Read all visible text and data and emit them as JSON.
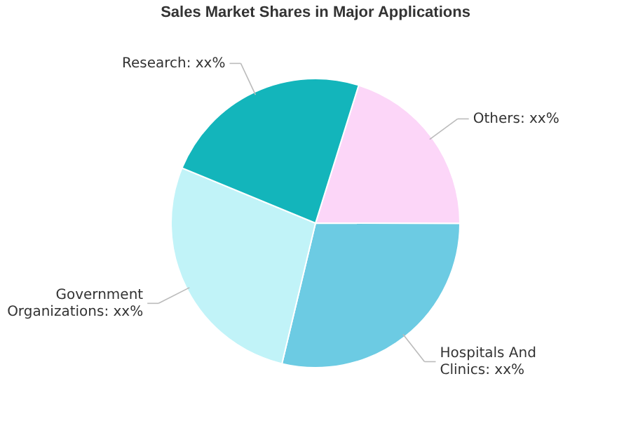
{
  "chart_data": {
    "type": "pie",
    "title": "Sales Market Shares in Major Applications",
    "categories": [
      "Others",
      "Hospitals And Clinics",
      "Government Organizations",
      "Research"
    ],
    "values": [
      20.2,
      28.7,
      27.5,
      23.6
    ],
    "value_labels": [
      "xx%",
      "xx%",
      "xx%",
      "xx%"
    ],
    "colors": [
      "#fcd6f8",
      "#6ccbe3",
      "#c1f3f8",
      "#13b5bb"
    ],
    "legend": false
  }
}
